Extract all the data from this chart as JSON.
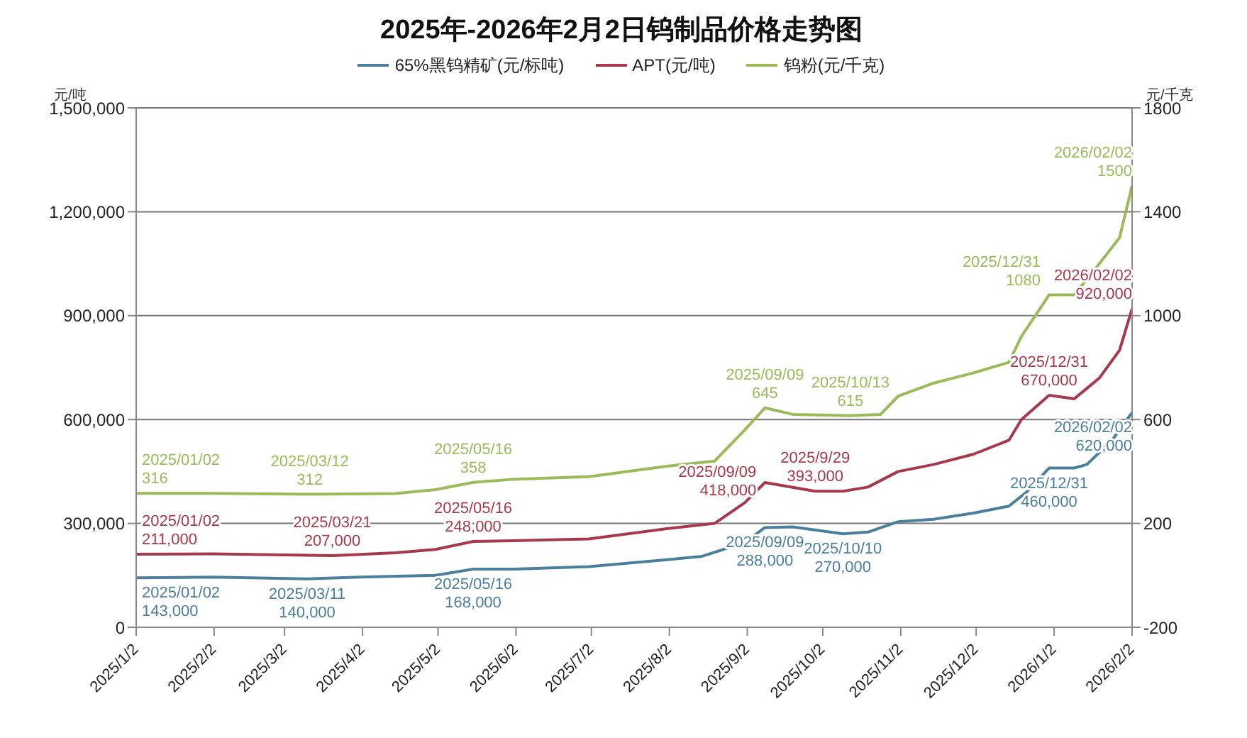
{
  "chart_data": {
    "type": "line",
    "title": "2025年-2026年2月2日钨制品价格走势图",
    "ylabel": "元/吨",
    "y2label": "元/千克",
    "xlim": [
      "2025-01-02",
      "2026-02-02"
    ],
    "xticks": [
      {
        "value": "2025-01-02",
        "label": "2025/1/2"
      },
      {
        "value": "2025-02-02",
        "label": "2025/2/2"
      },
      {
        "value": "2025-03-02",
        "label": "2025/3/2"
      },
      {
        "value": "2025-04-02",
        "label": "2025/4/2"
      },
      {
        "value": "2025-05-02",
        "label": "2025/5/2"
      },
      {
        "value": "2025-06-02",
        "label": "2025/6/2"
      },
      {
        "value": "2025-07-02",
        "label": "2025/7/2"
      },
      {
        "value": "2025-08-02",
        "label": "2025/8/2"
      },
      {
        "value": "2025-09-02",
        "label": "2025/9/2"
      },
      {
        "value": "2025-10-02",
        "label": "2025/10/2"
      },
      {
        "value": "2025-11-02",
        "label": "2025/11/2"
      },
      {
        "value": "2025-12-02",
        "label": "2025/12/2"
      },
      {
        "value": "2026-01-02",
        "label": "2026/1/2"
      },
      {
        "value": "2026-02-02",
        "label": "2026/2/2"
      }
    ],
    "ylim": [
      0,
      1500000
    ],
    "yticks": [
      {
        "value": 0,
        "label": "0"
      },
      {
        "value": 300000,
        "label": "300,000"
      },
      {
        "value": 600000,
        "label": "600,000"
      },
      {
        "value": 900000,
        "label": "900,000"
      },
      {
        "value": 1200000,
        "label": "1,200,000"
      },
      {
        "value": 1500000,
        "label": "1,500,000"
      }
    ],
    "y2lim": [
      -200,
      1800
    ],
    "y2ticks": [
      -200,
      200,
      600,
      1000,
      1400,
      1800
    ],
    "grid": "y",
    "legend": "top",
    "marker": "none",
    "line_style": "solid",
    "series": [
      {
        "name": "65%黑钨精矿(元/标吨)",
        "color": "#4a7f9e",
        "x": [
          "2025-01-02",
          "2025-02-01",
          "2025-03-11",
          "2025-04-01",
          "2025-05-01",
          "2025-05-16",
          "2025-06-01",
          "2025-07-01",
          "2025-08-01",
          "2025-08-15",
          "2025-09-01",
          "2025-09-09",
          "2025-09-20",
          "2025-10-10",
          "2025-10-20",
          "2025-11-01",
          "2025-11-15",
          "2025-12-01",
          "2025-12-15",
          "2025-12-22",
          "2025-12-31",
          "2026-01-10",
          "2026-01-15",
          "2026-01-25",
          "2026-02-02"
        ],
        "values": [
          143000,
          145000,
          140000,
          145000,
          150000,
          168000,
          168000,
          175000,
          195000,
          205000,
          245000,
          288000,
          290000,
          270000,
          275000,
          305000,
          312000,
          330000,
          350000,
          390000,
          460000,
          460000,
          470000,
          540000,
          620000
        ],
        "value_labels": [
          "2025/01/02 143,000",
          null,
          "2025/03/11 140,000",
          null,
          null,
          "2025/05/16 168,000",
          null,
          null,
          null,
          null,
          null,
          "2025/09/09 288,000",
          null,
          "2025/10/10 270,000",
          null,
          null,
          null,
          null,
          null,
          null,
          "2025/12/31 460,000",
          null,
          null,
          null,
          "2026/02/02 620,000"
        ]
      },
      {
        "name": "APT(元/吨)",
        "color": "#a63a4c",
        "x": [
          "2025-01-02",
          "2025-02-01",
          "2025-03-21",
          "2025-04-15",
          "2025-05-01",
          "2025-05-16",
          "2025-06-01",
          "2025-07-01",
          "2025-08-01",
          "2025-08-20",
          "2025-09-01",
          "2025-09-09",
          "2025-09-29",
          "2025-10-10",
          "2025-10-20",
          "2025-11-01",
          "2025-11-15",
          "2025-12-01",
          "2025-12-15",
          "2025-12-20",
          "2025-12-31",
          "2026-01-10",
          "2026-01-20",
          "2026-01-28",
          "2026-02-02"
        ],
        "values": [
          211000,
          212000,
          207000,
          215000,
          225000,
          248000,
          250000,
          255000,
          285000,
          300000,
          360000,
          418000,
          393000,
          393000,
          405000,
          450000,
          470000,
          500000,
          540000,
          600000,
          670000,
          660000,
          720000,
          800000,
          920000
        ],
        "value_labels": [
          "2025/01/02 211,000",
          null,
          "2025/03/21 207,000",
          null,
          null,
          "2025/05/16 248,000",
          null,
          null,
          null,
          null,
          null,
          "2025/09/09 418,000",
          "2025/9/29 393,000",
          null,
          null,
          null,
          null,
          null,
          null,
          null,
          "2025/12/31 670,000",
          null,
          null,
          null,
          "2026/02/02 920,000"
        ]
      },
      {
        "name": "钨粉(元/千克)",
        "color": "#9bbb59",
        "axis": "y2",
        "x": [
          "2025-01-02",
          "2025-02-01",
          "2025-03-12",
          "2025-04-15",
          "2025-05-01",
          "2025-05-16",
          "2025-06-01",
          "2025-07-01",
          "2025-08-01",
          "2025-08-20",
          "2025-09-01",
          "2025-09-09",
          "2025-09-20",
          "2025-10-13",
          "2025-10-25",
          "2025-11-01",
          "2025-11-15",
          "2025-12-01",
          "2025-12-15",
          "2025-12-20",
          "2025-12-31",
          "2026-01-10",
          "2026-01-20",
          "2026-01-28",
          "2026-02-02"
        ],
        "values": [
          316,
          316,
          312,
          315,
          330,
          358,
          370,
          380,
          420,
          440,
          560,
          645,
          620,
          615,
          620,
          690,
          740,
          780,
          820,
          920,
          1080,
          1080,
          1200,
          1300,
          1500
        ],
        "value_labels": [
          "2025/01/02 316",
          null,
          "2025/03/12 312",
          null,
          null,
          "2025/05/16 358",
          null,
          null,
          null,
          null,
          null,
          "2025/09/09 645",
          null,
          "2025/10/13 615",
          null,
          null,
          null,
          null,
          null,
          null,
          "2025/12/31 1080",
          null,
          null,
          null,
          "2026/02/02 1500"
        ]
      }
    ]
  }
}
